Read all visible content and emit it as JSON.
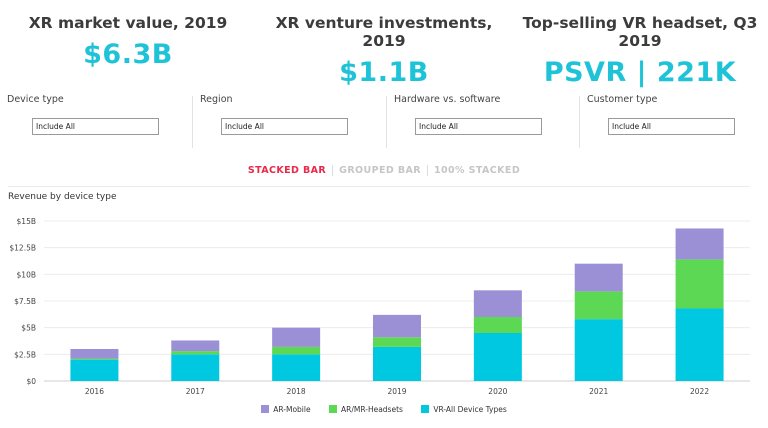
{
  "kpis": [
    {
      "title": "XR market value, 2019",
      "value": "$6.3B"
    },
    {
      "title": "XR venture investments, 2019",
      "value": "$1.1B"
    },
    {
      "title": "Top-selling VR headset, Q3 2019",
      "value": "PSVR | 221K"
    }
  ],
  "filters": [
    {
      "label": "Device type",
      "value": "Include All"
    },
    {
      "label": "Region",
      "value": "Include All"
    },
    {
      "label": "Hardware vs. software",
      "value": "Include All"
    },
    {
      "label": "Customer type",
      "value": "Include All"
    }
  ],
  "tabs": [
    {
      "label": "STACKED BAR",
      "active": true
    },
    {
      "label": "GROUPED BAR",
      "active": false
    },
    {
      "label": "100% STACKED",
      "active": false
    }
  ],
  "chart_title": "Revenue by device type",
  "colors": {
    "accent": "#1ec3d8",
    "tab_active": "#e8294a"
  },
  "chart_data": {
    "type": "bar",
    "stacked": true,
    "categories": [
      "2016",
      "2017",
      "2018",
      "2019",
      "2020",
      "2021",
      "2022"
    ],
    "series": [
      {
        "name": "VR-All Device Types",
        "color": "#00c8e0",
        "values": [
          2.0,
          2.5,
          2.5,
          3.2,
          4.5,
          5.8,
          6.8
        ]
      },
      {
        "name": "AR/MR-Headsets",
        "color": "#5dd855",
        "values": [
          0.1,
          0.3,
          0.7,
          0.9,
          1.5,
          2.6,
          4.6
        ]
      },
      {
        "name": "AR-Mobile",
        "color": "#9b8fd6",
        "values": [
          0.9,
          1.0,
          1.8,
          2.1,
          2.5,
          2.6,
          2.9
        ]
      }
    ],
    "legend_order": [
      "AR-Mobile",
      "AR/MR-Headsets",
      "VR-All Device Types"
    ],
    "y_ticks": [
      "$0",
      "$2.5B",
      "$5B",
      "$7.5B",
      "$10B",
      "$12.5B",
      "$15B"
    ],
    "ylim": [
      0,
      15
    ],
    "ylabel": "",
    "xlabel": "",
    "legend_position": "bottom"
  }
}
